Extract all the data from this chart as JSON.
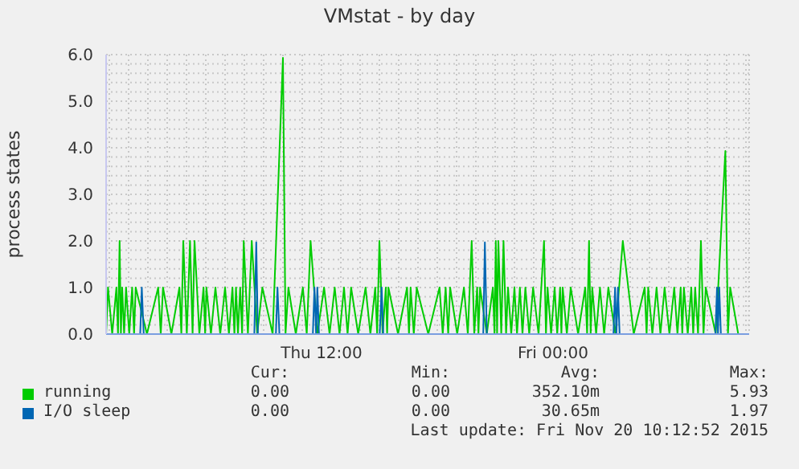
{
  "chart_data": {
    "type": "line",
    "title": "VMstat - by day",
    "ylabel": "process states",
    "xlim": [
      "2015-11-19T00:50",
      "2015-11-20T10:10"
    ],
    "xticks": [
      {
        "value": "2015-11-19T01:00",
        "label": null
      },
      {
        "value": "2015-11-19T02:00",
        "label": null
      },
      {
        "value": "2015-11-19T03:00",
        "label": null
      },
      {
        "value": "2015-11-19T04:00",
        "label": null
      },
      {
        "value": "2015-11-19T05:00",
        "label": null
      },
      {
        "value": "2015-11-19T06:00",
        "label": null
      },
      {
        "value": "2015-11-19T07:00",
        "label": null
      },
      {
        "value": "2015-11-19T08:00",
        "label": null
      },
      {
        "value": "2015-11-19T09:00",
        "label": null
      },
      {
        "value": "2015-11-19T10:00",
        "label": null
      },
      {
        "value": "2015-11-19T11:00",
        "label": null
      },
      {
        "value": "2015-11-19T12:00",
        "label": "Thu 12:00"
      },
      {
        "value": "2015-11-19T13:00",
        "label": null
      },
      {
        "value": "2015-11-19T14:00",
        "label": null
      },
      {
        "value": "2015-11-19T15:00",
        "label": null
      },
      {
        "value": "2015-11-19T16:00",
        "label": null
      },
      {
        "value": "2015-11-19T17:00",
        "label": null
      },
      {
        "value": "2015-11-19T18:00",
        "label": null
      },
      {
        "value": "2015-11-19T19:00",
        "label": null
      },
      {
        "value": "2015-11-19T20:00",
        "label": null
      },
      {
        "value": "2015-11-19T21:00",
        "label": null
      },
      {
        "value": "2015-11-19T22:00",
        "label": null
      },
      {
        "value": "2015-11-19T23:00",
        "label": null
      },
      {
        "value": "2015-11-20T00:00",
        "label": "Fri 00:00"
      },
      {
        "value": "2015-11-20T01:00",
        "label": null
      },
      {
        "value": "2015-11-20T02:00",
        "label": null
      },
      {
        "value": "2015-11-20T03:00",
        "label": null
      },
      {
        "value": "2015-11-20T04:00",
        "label": null
      },
      {
        "value": "2015-11-20T05:00",
        "label": null
      },
      {
        "value": "2015-11-20T06:00",
        "label": null
      },
      {
        "value": "2015-11-20T07:00",
        "label": null
      },
      {
        "value": "2015-11-20T08:00",
        "label": null
      },
      {
        "value": "2015-11-20T09:00",
        "label": null
      },
      {
        "value": "2015-11-20T10:00",
        "label": null
      }
    ],
    "ylim": [
      0,
      6.0
    ],
    "yticks": [
      {
        "value": 0,
        "label": "0.0"
      },
      {
        "value": 0.2,
        "label": null
      },
      {
        "value": 0.4,
        "label": null
      },
      {
        "value": 0.6,
        "label": null
      },
      {
        "value": 0.8,
        "label": null
      },
      {
        "value": 1,
        "label": "1.0"
      },
      {
        "value": 1.2,
        "label": null
      },
      {
        "value": 1.4,
        "label": null
      },
      {
        "value": 1.6,
        "label": null
      },
      {
        "value": 1.8,
        "label": null
      },
      {
        "value": 2,
        "label": "2.0"
      },
      {
        "value": 2.2,
        "label": null
      },
      {
        "value": 2.4,
        "label": null
      },
      {
        "value": 2.6,
        "label": null
      },
      {
        "value": 2.8,
        "label": null
      },
      {
        "value": 3,
        "label": "3.0"
      },
      {
        "value": 3.2,
        "label": null
      },
      {
        "value": 3.4,
        "label": null
      },
      {
        "value": 3.6,
        "label": null
      },
      {
        "value": 3.8,
        "label": null
      },
      {
        "value": 4,
        "label": "4.0"
      },
      {
        "value": 4.2,
        "label": null
      },
      {
        "value": 4.4,
        "label": null
      },
      {
        "value": 4.6,
        "label": null
      },
      {
        "value": 4.8,
        "label": null
      },
      {
        "value": 5,
        "label": "5.0"
      },
      {
        "value": 5.2,
        "label": null
      },
      {
        "value": 5.4,
        "label": null
      },
      {
        "value": 5.6,
        "label": null
      },
      {
        "value": 5.8,
        "label": null
      },
      {
        "value": 6,
        "label": "6.0"
      }
    ],
    "grid": true,
    "legend": "bottom",
    "series": [
      {
        "name": "running",
        "color": "#00cc00",
        "x": [
          "2015-11-19T00:50",
          "2015-11-19T00:56",
          "2015-11-19T01:09",
          "2015-11-19T01:22",
          "2015-11-19T01:27",
          "2015-11-19T01:32",
          "2015-11-19T01:36",
          "2015-11-19T01:40",
          "2015-11-19T01:46",
          "2015-11-19T01:52",
          "2015-11-19T02:02",
          "2015-11-19T02:11",
          "2015-11-19T02:17",
          "2015-11-19T02:22",
          "2015-11-19T02:57",
          "2015-11-19T03:32",
          "2015-11-19T03:40",
          "2015-11-19T03:47",
          "2015-11-19T04:13",
          "2015-11-19T04:38",
          "2015-11-19T04:44",
          "2015-11-19T04:50",
          "2015-11-19T05:01",
          "2015-11-19T05:11",
          "2015-11-19T05:19",
          "2015-11-19T05:25",
          "2015-11-19T05:40",
          "2015-11-19T05:53",
          "2015-11-19T05:58",
          "2015-11-19T06:02",
          "2015-11-19T06:16",
          "2015-11-19T06:30",
          "2015-11-19T06:45",
          "2015-11-19T07:00",
          "2015-11-19T07:12",
          "2015-11-19T07:23",
          "2015-11-19T07:29",
          "2015-11-19T07:34",
          "2015-11-19T07:40",
          "2015-11-19T07:47",
          "2015-11-19T07:53",
          "2015-11-19T07:58",
          "2015-11-19T08:11",
          "2015-11-19T08:23",
          "2015-11-19T08:40",
          "2015-11-19T08:56",
          "2015-11-19T09:28",
          "2015-11-19T10:00",
          "2015-11-19T10:08",
          "2015-11-19T10:17",
          "2015-11-19T10:40",
          "2015-11-19T11:02",
          "2015-11-19T11:14",
          "2015-11-19T11:26",
          "2015-11-19T11:47",
          "2015-11-19T12:08",
          "2015-11-19T12:25",
          "2015-11-19T12:41",
          "2015-11-19T12:56",
          "2015-11-19T13:10",
          "2015-11-19T13:21",
          "2015-11-19T13:32",
          "2015-11-19T13:54",
          "2015-11-19T14:17",
          "2015-11-19T14:32",
          "2015-11-19T14:47",
          "2015-11-19T14:53",
          "2015-11-19T15:00",
          "2015-11-19T15:10",
          "2015-11-19T15:20",
          "2015-11-19T15:24",
          "2015-11-19T15:28",
          "2015-11-19T15:58",
          "2015-11-19T16:26",
          "2015-11-19T16:32",
          "2015-11-19T16:37",
          "2015-11-19T16:47",
          "2015-11-19T16:56",
          "2015-11-19T17:32",
          "2015-11-19T18:07",
          "2015-11-19T18:17",
          "2015-11-19T18:26",
          "2015-11-19T18:34",
          "2015-11-19T18:40",
          "2015-11-19T19:02",
          "2015-11-19T19:23",
          "2015-11-19T19:35",
          "2015-11-19T19:47",
          "2015-11-19T19:55",
          "2015-11-19T20:04",
          "2015-11-19T20:08",
          "2015-11-19T20:13",
          "2015-11-19T20:34",
          "2015-11-19T20:53",
          "2015-11-19T20:58",
          "2015-11-19T21:02",
          "2015-11-19T21:06",
          "2015-11-19T21:10",
          "2015-11-19T21:19",
          "2015-11-19T21:26",
          "2015-11-19T21:34",
          "2015-11-19T21:40",
          "2015-11-19T21:50",
          "2015-11-19T22:00",
          "2015-11-19T22:08",
          "2015-11-19T22:17",
          "2015-11-19T22:25",
          "2015-11-19T22:34",
          "2015-11-19T22:46",
          "2015-11-19T22:58",
          "2015-11-19T23:15",
          "2015-11-19T23:32",
          "2015-11-19T23:38",
          "2015-11-19T23:43",
          "2015-11-19T23:54",
          "2015-11-20T00:05",
          "2015-11-20T00:13",
          "2015-11-20T00:22",
          "2015-11-20T00:26",
          "2015-11-20T00:30",
          "2015-11-20T00:43",
          "2015-11-20T00:55",
          "2015-11-20T01:18",
          "2015-11-20T01:40",
          "2015-11-20T01:46",
          "2015-11-20T01:52",
          "2015-11-20T01:57",
          "2015-11-20T02:02",
          "2015-11-20T02:14",
          "2015-11-20T02:26",
          "2015-11-20T02:39",
          "2015-11-20T02:52",
          "2015-11-20T03:14",
          "2015-11-20T03:37",
          "2015-11-20T04:11",
          "2015-11-20T04:45",
          "2015-11-20T04:51",
          "2015-11-20T04:56",
          "2015-11-20T05:09",
          "2015-11-20T05:22",
          "2015-11-20T05:34",
          "2015-11-20T05:47",
          "2015-11-20T06:02",
          "2015-11-20T06:17",
          "2015-11-20T06:27",
          "2015-11-20T06:37",
          "2015-11-20T06:42",
          "2015-11-20T06:47",
          "2015-11-20T06:59",
          "2015-11-20T07:10",
          "2015-11-20T07:16",
          "2015-11-20T07:22",
          "2015-11-20T07:31",
          "2015-11-20T07:40",
          "2015-11-20T07:48",
          "2015-11-20T07:55",
          "2015-11-20T08:26",
          "2015-11-20T08:56",
          "2015-11-20T09:04",
          "2015-11-20T09:11",
          "2015-11-20T09:36",
          "2015-11-20T10:10"
        ],
        "values": [
          0,
          1,
          0,
          1,
          0,
          2,
          0,
          1,
          0,
          1,
          0,
          1,
          0,
          1,
          0,
          1,
          0,
          1,
          0,
          1,
          0,
          2,
          0,
          2,
          0,
          2,
          0,
          1,
          0,
          1,
          0,
          1,
          0,
          1,
          0,
          1,
          0,
          1,
          0,
          1,
          0,
          2,
          0,
          2,
          0,
          1,
          0,
          5.93,
          0,
          1,
          0,
          1,
          0,
          2,
          0,
          1,
          0,
          1,
          0,
          1,
          0,
          1,
          0,
          1,
          0,
          1,
          0,
          2,
          0,
          1,
          0,
          1,
          0,
          1,
          0,
          1,
          0,
          1,
          0,
          1,
          0,
          1,
          0,
          1,
          0,
          1,
          0,
          2,
          0,
          1,
          0,
          1,
          0,
          1,
          0,
          2,
          0,
          2,
          0,
          2,
          0,
          1,
          0,
          1,
          0,
          1,
          0,
          1,
          0,
          1,
          0,
          2,
          0,
          1,
          0,
          1,
          0,
          1,
          0,
          1,
          0,
          1,
          0,
          1,
          0,
          2,
          0,
          1,
          0,
          1,
          0,
          1,
          0,
          2,
          0,
          1,
          0,
          1,
          0,
          1,
          0,
          1,
          0,
          1,
          0,
          1,
          0,
          1,
          0,
          1,
          0,
          1,
          0,
          2,
          0,
          1,
          0,
          3.93,
          0,
          1,
          0,
          0
        ]
      },
      {
        "name": "I/O sleep",
        "color": "#0066b3",
        "x": [
          "2015-11-19T00:50",
          "2015-11-19T02:36",
          "2015-11-19T02:41",
          "2015-11-19T02:47",
          "2015-11-19T08:31",
          "2015-11-19T08:37",
          "2015-11-19T08:42",
          "2015-11-19T09:38",
          "2015-11-19T09:43",
          "2015-11-19T09:49",
          "2015-11-19T11:33",
          "2015-11-19T11:38",
          "2015-11-19T11:43",
          "2015-11-19T11:47",
          "2015-11-19T11:52",
          "2015-11-19T15:01",
          "2015-11-19T15:07",
          "2015-11-19T15:12",
          "2015-11-19T20:23",
          "2015-11-19T20:28",
          "2015-11-19T20:34",
          "2015-11-20T03:08",
          "2015-11-20T03:13",
          "2015-11-20T03:17",
          "2015-11-20T03:22",
          "2015-11-20T03:27",
          "2015-11-20T08:25",
          "2015-11-20T08:30",
          "2015-11-20T08:33",
          "2015-11-20T08:37",
          "2015-11-20T08:42",
          "2015-11-20T10:10"
        ],
        "values": [
          0,
          0,
          1,
          0,
          0,
          1.97,
          0,
          0,
          1,
          0,
          0,
          1,
          0,
          1,
          0,
          0,
          1,
          0,
          0,
          1.97,
          0,
          0,
          1,
          0,
          1,
          0,
          0,
          1,
          0,
          1,
          0,
          0
        ]
      }
    ],
    "annotations": [
      "Cur:",
      "Min:",
      "Avg:",
      "Max:",
      "0.00",
      "0.00",
      "352.10m",
      "5.93",
      "0.00",
      "0.00",
      "30.65m",
      "1.97",
      "Last update: Fri Nov 20 10:12:52 2015"
    ]
  }
}
